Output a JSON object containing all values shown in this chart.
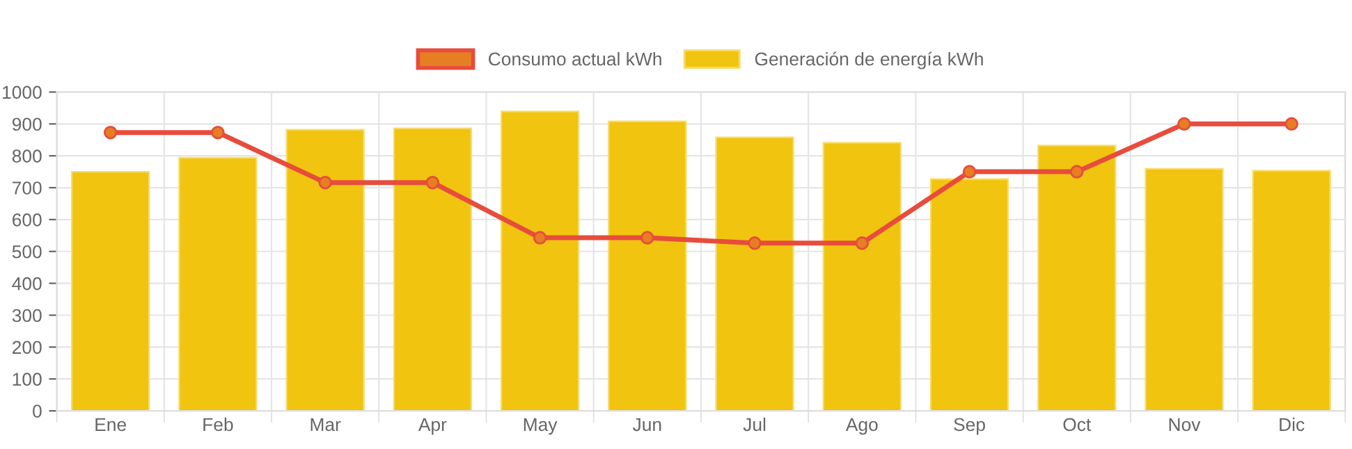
{
  "chart_data": {
    "type": "bar",
    "categories": [
      "Ene",
      "Feb",
      "Mar",
      "Apr",
      "May",
      "Jun",
      "Jul",
      "Ago",
      "Sep",
      "Oct",
      "Nov",
      "Dic"
    ],
    "series": [
      {
        "name": "Consumo actual kWh",
        "type": "line",
        "color": "#e74c3c",
        "values": [
          873,
          873,
          716,
          716,
          543,
          543,
          526,
          526,
          750,
          750,
          900,
          900
        ]
      },
      {
        "name": "Generación de energía kWh",
        "color": "#f1c40f",
        "values": [
          750,
          794,
          882,
          886,
          939,
          908,
          858,
          841,
          727,
          832,
          759,
          753
        ]
      }
    ],
    "ylim": [
      0,
      1000
    ],
    "yticks": [
      0,
      100,
      200,
      300,
      400,
      500,
      600,
      700,
      800,
      900,
      1000
    ],
    "grid": true,
    "legend": "top",
    "marker": "circle",
    "line_style": "solid"
  }
}
